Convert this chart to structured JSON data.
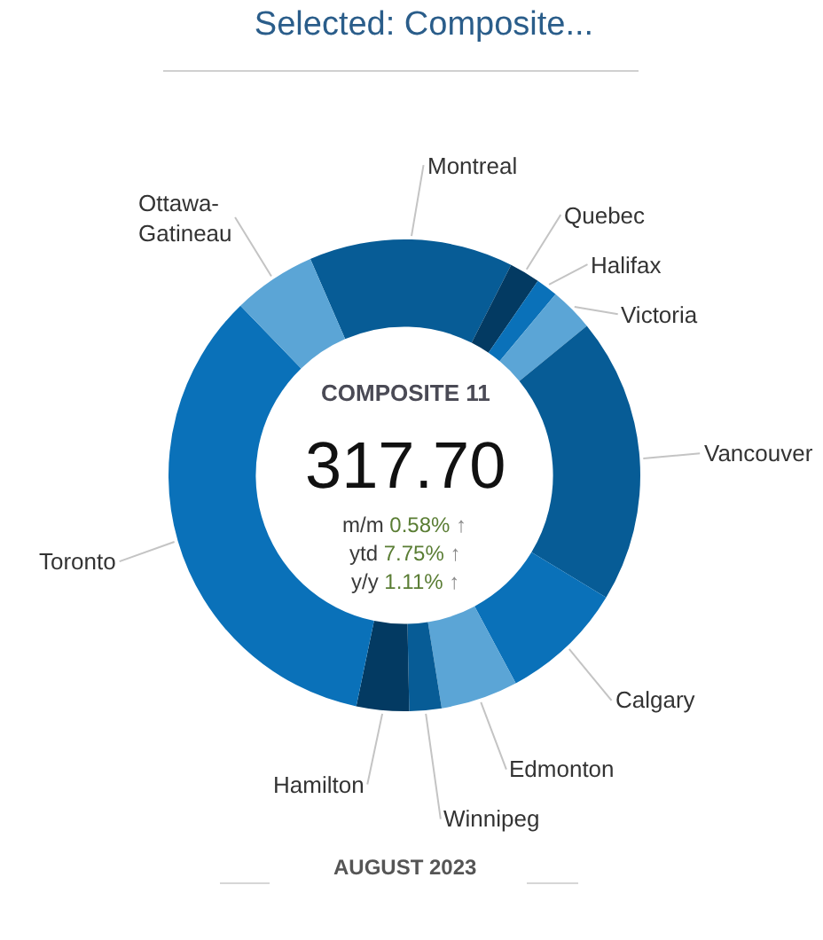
{
  "chart_data": {
    "type": "donut",
    "title": "Selected: Composite...",
    "categories": [
      "Montreal",
      "Quebec",
      "Halifax",
      "Victoria",
      "Vancouver",
      "Calgary",
      "Edmonton",
      "Winnipeg",
      "Hamilton",
      "Toronto",
      "Ottawa-Gatineau"
    ],
    "values": [
      14.0,
      2.1,
      1.5,
      3.0,
      19.6,
      8.5,
      5.3,
      2.2,
      3.6,
      34.5,
      5.7
    ],
    "colors": [
      "#075c96",
      "#033a62",
      "#0a71b9",
      "#5ba5d6",
      "#075c96",
      "#0a71b9",
      "#5ba5d6",
      "#075c96",
      "#033a62",
      "#0a71b9",
      "#5ba5d6"
    ],
    "annotations": [
      "COMPOSITE 11",
      "317.70",
      "m/m 0.58% ↑",
      "ytd 7.75% ↑",
      "y/y 1.11% ↑",
      "AUGUST 2023"
    ]
  }
}
